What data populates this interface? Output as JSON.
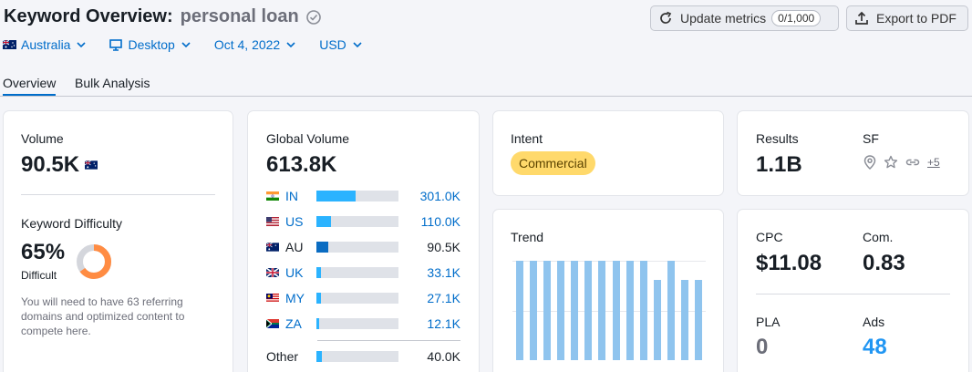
{
  "header": {
    "title_prefix": "Keyword Overview:",
    "keyword": "personal loan",
    "update_label": "Update metrics",
    "update_counter": "0/1,000",
    "export_label": "Export to PDF"
  },
  "filters": {
    "country": "Australia",
    "device": "Desktop",
    "date": "Oct 4, 2022",
    "currency": "USD"
  },
  "tabs": [
    "Overview",
    "Bulk Analysis"
  ],
  "volume": {
    "label": "Volume",
    "value": "90.5K"
  },
  "difficulty": {
    "label": "Keyword Difficulty",
    "value": "65%",
    "percent": 65,
    "level": "Difficult",
    "description": "You will need to have 63 referring domains and optimized content to compete here.",
    "color": "#ff8c43"
  },
  "global_volume": {
    "label": "Global Volume",
    "value": "613.8K",
    "rows": [
      {
        "code": "IN",
        "value": "301.0K",
        "fraction": 0.48,
        "link": true
      },
      {
        "code": "US",
        "value": "110.0K",
        "fraction": 0.18,
        "link": true
      },
      {
        "code": "AU",
        "value": "90.5K",
        "fraction": 0.14,
        "link": false
      },
      {
        "code": "UK",
        "value": "33.1K",
        "fraction": 0.06,
        "link": true
      },
      {
        "code": "MY",
        "value": "27.1K",
        "fraction": 0.05,
        "link": true
      },
      {
        "code": "ZA",
        "value": "12.1K",
        "fraction": 0.03,
        "link": true
      }
    ],
    "other_label": "Other",
    "other_value": "40.0K",
    "other_fraction": 0.07
  },
  "intent": {
    "label": "Intent",
    "badge": "Commercial"
  },
  "results": {
    "label": "Results",
    "value": "1.1B",
    "sf_label": "SF",
    "sf_more": "+5"
  },
  "trend": {
    "label": "Trend",
    "values": [
      1,
      1,
      1,
      1,
      1,
      1,
      1,
      1,
      1,
      1,
      0.81,
      1,
      0.81,
      0.81
    ]
  },
  "metrics": {
    "cpc_label": "CPC",
    "cpc_value": "$11.08",
    "com_label": "Com.",
    "com_value": "0.83",
    "pla_label": "PLA",
    "pla_value": "0",
    "ads_label": "Ads",
    "ads_value": "48"
  },
  "colors": {
    "link": "#006dca",
    "bar": "#2bb3ff",
    "trend": "#8fc4ee",
    "ads": "#2196f3"
  }
}
